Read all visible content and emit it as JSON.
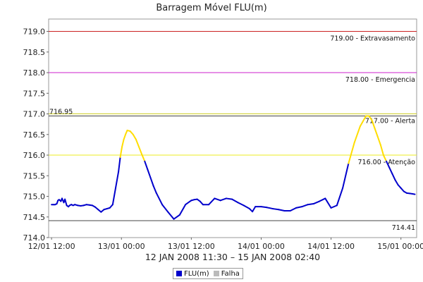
{
  "chart_data": {
    "type": "line",
    "title": "Barragem Móvel FLU(m)",
    "date_range_label": "12 JAN 2008 11:30 – 15 JAN 2008 02:40",
    "x_ticks": [
      "12/01 12:00",
      "13/01 00:00",
      "13/01 12:00",
      "14/01 00:00",
      "14/01 12:00",
      "15/01 00:00"
    ],
    "x_tick_hours": [
      0,
      12,
      24,
      36,
      48,
      60
    ],
    "x_range_hours": [
      -0.5,
      62.7
    ],
    "x_origin_label": "12/01 12:00",
    "ylim": [
      714.0,
      719.3
    ],
    "y_ticks": [
      714.0,
      714.5,
      715.0,
      715.5,
      716.0,
      716.5,
      717.0,
      717.5,
      718.0,
      718.5,
      719.0
    ],
    "grid": false,
    "reference_lines": [
      {
        "value": 719.0,
        "label": "719.00 - Extravasamento",
        "color": "#cc2222"
      },
      {
        "value": 718.0,
        "label": "718.00 - Emergencia",
        "color": "#cc22cc"
      },
      {
        "value": 717.0,
        "label": "717.00 - Alerta",
        "color": "#cccc22"
      },
      {
        "value": 716.0,
        "label": "716.00 - Atenção",
        "color": "#eeee22"
      },
      {
        "value": 716.95,
        "label": "716.95",
        "color": "#444444"
      },
      {
        "value": 714.41,
        "label": "714.41",
        "color": "#444444"
      }
    ],
    "series": [
      {
        "name": "FLU(m)",
        "color": "#0000cc",
        "highlight_color": "#ffdd00",
        "highlight_threshold": 716.0,
        "x": [
          0,
          0.3,
          0.6,
          0.9,
          1.1,
          1.3,
          1.6,
          1.8,
          2.1,
          2.3,
          2.6,
          2.9,
          3.1,
          3.4,
          3.7,
          4.0,
          4.5,
          5.0,
          5.5,
          6.0,
          6.5,
          7.0,
          7.5,
          8.0,
          8.5,
          9.0,
          9.5,
          10.0,
          10.5,
          11.0,
          11.5,
          11.8,
          12.1,
          12.4,
          12.7,
          13.0,
          13.5,
          14.0,
          14.5,
          15.0,
          15.5,
          16.0,
          16.5,
          17.0,
          17.5,
          18.0,
          19.0,
          20.0,
          21.0,
          22.0,
          23.0,
          24.0,
          24.5,
          25.0,
          25.5,
          26.0,
          27.0,
          28.0,
          29.0,
          30.0,
          31.0,
          32.0,
          33.0,
          34.0,
          34.5,
          35.0,
          36.0,
          37.0,
          38.0,
          39.0,
          40.0,
          41.0,
          42.0,
          43.0,
          44.0,
          45.0,
          46.0,
          47.0,
          48.0,
          49.0,
          50.0,
          51.0,
          52.0,
          53.0,
          54.0,
          54.5,
          55.0,
          55.5,
          56.0,
          56.5,
          57.0,
          57.5,
          58.0,
          58.5,
          59.0,
          59.5,
          60.0,
          60.5,
          61.0,
          61.5,
          62.0,
          62.4
        ],
        "values": [
          714.8,
          714.8,
          714.8,
          714.82,
          714.9,
          714.92,
          714.88,
          714.95,
          714.85,
          714.93,
          714.78,
          714.75,
          714.78,
          714.8,
          714.78,
          714.8,
          714.78,
          714.77,
          714.78,
          714.8,
          714.79,
          714.78,
          714.74,
          714.68,
          714.62,
          714.68,
          714.7,
          714.72,
          714.8,
          715.2,
          715.6,
          715.95,
          716.2,
          716.38,
          716.5,
          716.6,
          716.58,
          716.5,
          716.38,
          716.2,
          716.02,
          715.85,
          715.65,
          715.45,
          715.25,
          715.08,
          714.8,
          714.62,
          714.45,
          714.55,
          714.8,
          714.9,
          714.92,
          714.93,
          714.88,
          714.8,
          714.8,
          714.95,
          714.9,
          714.95,
          714.93,
          714.85,
          714.78,
          714.7,
          714.63,
          714.75,
          714.75,
          714.73,
          714.7,
          714.68,
          714.65,
          714.65,
          714.72,
          714.75,
          714.8,
          714.82,
          714.88,
          714.95,
          714.72,
          714.78,
          715.2,
          715.8,
          716.3,
          716.7,
          716.95,
          716.95,
          716.85,
          716.65,
          716.45,
          716.25,
          716.0,
          715.85,
          715.7,
          715.55,
          715.4,
          715.28,
          715.2,
          715.12,
          715.08,
          715.07,
          715.06,
          715.05
        ]
      }
    ],
    "legend": {
      "position": "bottom",
      "entries": [
        {
          "name": "FLU(m)",
          "color": "#0000cc"
        },
        {
          "name": "Falha",
          "color": "#bbbbbb"
        }
      ]
    }
  }
}
